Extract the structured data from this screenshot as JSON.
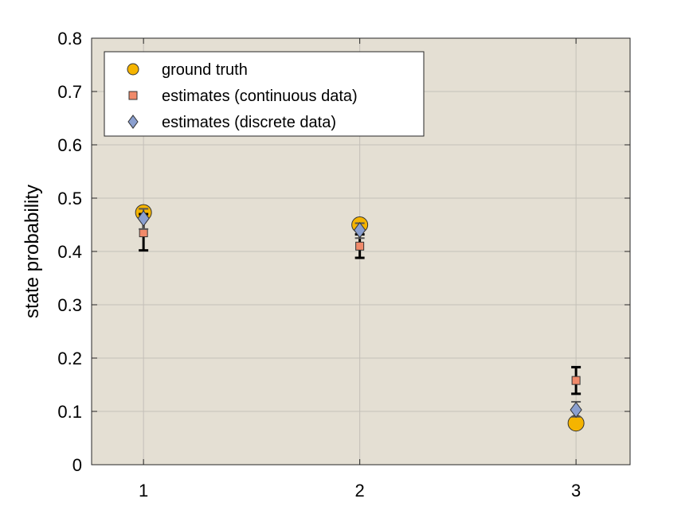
{
  "chart_data": {
    "type": "scatter",
    "title": "",
    "xlabel": "",
    "ylabel": "state probability",
    "xlim": [
      0.76,
      3.25
    ],
    "ylim": [
      0,
      0.8
    ],
    "xticks": [
      "1",
      "2",
      "3"
    ],
    "yticks": [
      "0",
      "0.1",
      "0.2",
      "0.3",
      "0.4",
      "0.5",
      "0.6",
      "0.7",
      "0.8"
    ],
    "grid": true,
    "legend_position": "top-left",
    "x": [
      1,
      2,
      3
    ],
    "series": [
      {
        "name": "ground truth",
        "marker": "circle",
        "color": "#F5B400",
        "values": [
          0.473,
          0.45,
          0.078
        ]
      },
      {
        "name": "estimates (continuous data)",
        "marker": "square",
        "color": "#F08A6A",
        "values": [
          0.435,
          0.41,
          0.158
        ],
        "error_low": [
          0.402,
          0.388,
          0.133
        ],
        "error_high": [
          0.47,
          0.432,
          0.183
        ]
      },
      {
        "name": "estimates (discrete data)",
        "marker": "diamond",
        "color": "#8A9FCF",
        "values": [
          0.462,
          0.44,
          0.103
        ],
        "error_low": [
          0.442,
          0.425,
          0.09
        ],
        "error_high": [
          0.48,
          0.453,
          0.118
        ]
      }
    ],
    "colors": {
      "plot_background": "#E4DFD3",
      "grid": "#C4C0B8",
      "error_bar": "#000000",
      "discrete_error_bar": "#555555"
    }
  }
}
